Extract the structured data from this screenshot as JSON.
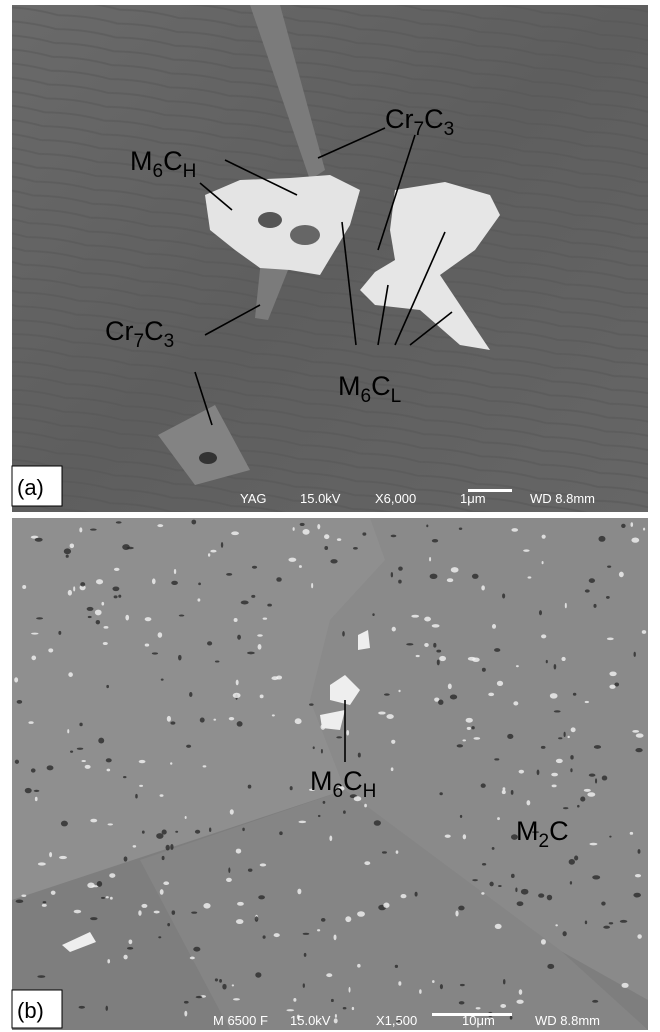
{
  "panels": [
    {
      "tag": "(a)",
      "labels": [
        {
          "parts": [
            {
              "text": "M",
              "sub": false
            },
            {
              "text": "6",
              "sub": true
            },
            {
              "text": "C",
              "sub": false
            },
            {
              "text": "H",
              "sub": true
            }
          ]
        },
        {
          "parts": [
            {
              "text": "Cr",
              "sub": false
            },
            {
              "text": "7",
              "sub": true
            },
            {
              "text": "C",
              "sub": false
            },
            {
              "text": "3",
              "sub": true
            }
          ]
        },
        {
          "parts": [
            {
              "text": "Cr",
              "sub": false
            },
            {
              "text": "7",
              "sub": true
            },
            {
              "text": "C",
              "sub": false
            },
            {
              "text": "3",
              "sub": true
            }
          ]
        },
        {
          "parts": [
            {
              "text": "M",
              "sub": false
            },
            {
              "text": "6",
              "sub": true
            },
            {
              "text": "C",
              "sub": false
            },
            {
              "text": "L",
              "sub": true
            }
          ]
        }
      ],
      "info": [
        "YAG",
        "15.0kV",
        "X6,000",
        "1μm",
        "WD 8.8mm"
      ]
    },
    {
      "tag": "(b)",
      "labels": [
        {
          "parts": [
            {
              "text": "M",
              "sub": false
            },
            {
              "text": "6",
              "sub": true
            },
            {
              "text": "C",
              "sub": false
            },
            {
              "text": "H",
              "sub": true
            }
          ]
        },
        {
          "parts": [
            {
              "text": "M",
              "sub": false
            },
            {
              "text": "2",
              "sub": true
            },
            {
              "text": "C",
              "sub": false
            }
          ]
        }
      ],
      "info": [
        "M 6500 F",
        "15.0kV",
        "X1,500",
        "10μm",
        "WD 8.8mm"
      ]
    }
  ]
}
